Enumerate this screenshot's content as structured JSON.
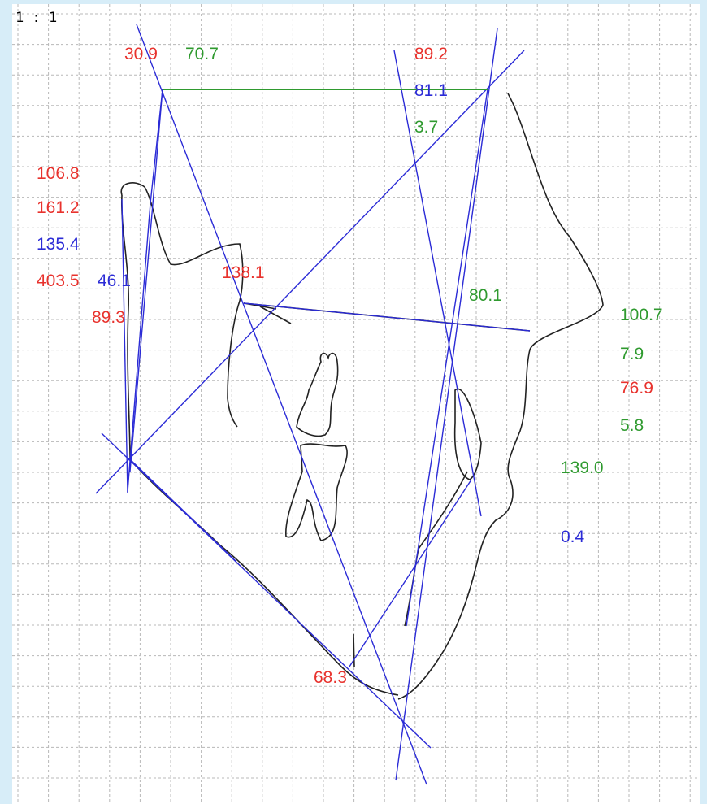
{
  "scale": "1 : 1",
  "measurements": [
    {
      "text": "30.9",
      "color": "#e8322d"
    },
    {
      "text": "70.7",
      "color": "#2f9a2f"
    },
    {
      "text": "89.2",
      "color": "#e8322d"
    },
    {
      "text": "81.1",
      "color": "#2b2bd6"
    },
    {
      "text": "3.7",
      "color": "#2f9a2f"
    },
    {
      "text": "106.8",
      "color": "#e8322d"
    },
    {
      "text": "161.2",
      "color": "#e8322d"
    },
    {
      "text": "135.4",
      "color": "#2b2bd6"
    },
    {
      "text": "403.5",
      "color": "#e8322d"
    },
    {
      "text": "46.1",
      "color": "#2b2bd6"
    },
    {
      "text": "89.3",
      "color": "#e8322d"
    },
    {
      "text": "138.1",
      "color": "#e8322d"
    },
    {
      "text": "80.1",
      "color": "#2f9a2f"
    },
    {
      "text": "100.7",
      "color": "#2f9a2f"
    },
    {
      "text": "7.9",
      "color": "#2f9a2f"
    },
    {
      "text": "76.9",
      "color": "#e8322d"
    },
    {
      "text": "5.8",
      "color": "#2f9a2f"
    },
    {
      "text": "139.0",
      "color": "#2f9a2f"
    },
    {
      "text": "0.4",
      "color": "#2b2bd6"
    },
    {
      "text": "68.3",
      "color": "#e8322d"
    }
  ]
}
